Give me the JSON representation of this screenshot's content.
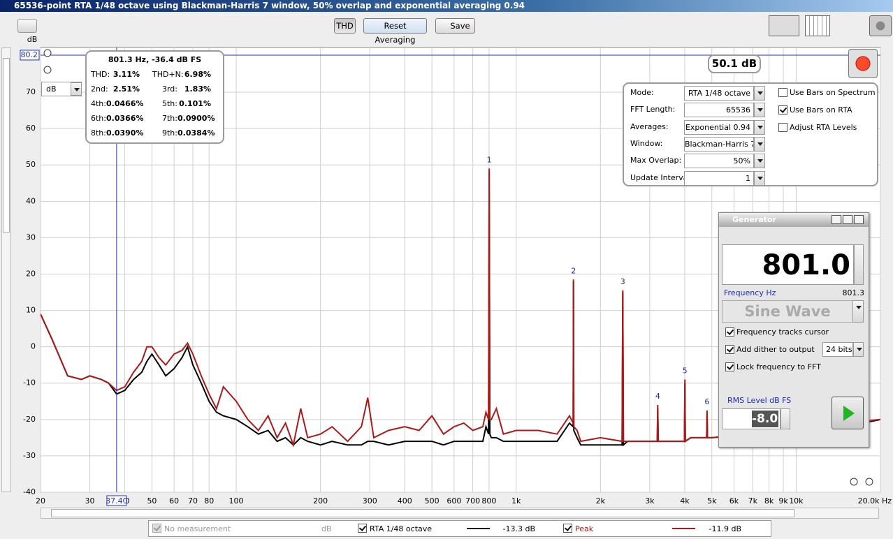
{
  "window": {
    "title": "65536-point RTA 1/48 octave using Blackman-Harris 7 window, 50% overlap and exponential averaging 0.94"
  },
  "toolbar": {
    "buttons": [
      "THD",
      "Reset Averaging",
      "Save"
    ]
  },
  "chart_data": {
    "type": "line",
    "xscale": "log",
    "ylabel": "dB",
    "unit_dropdown": "dB",
    "xlim": [
      20,
      20000
    ],
    "ylim": [
      -40,
      82.3
    ],
    "xticks": [
      20,
      30,
      40,
      50,
      60,
      70,
      80,
      100,
      200,
      300,
      400,
      500,
      600,
      700,
      800,
      {
        "value": 1000,
        "label": "1k"
      },
      {
        "value": 2000,
        "label": "2k"
      },
      {
        "value": 3000,
        "label": "3k"
      },
      {
        "value": 4000,
        "label": "4k"
      },
      {
        "value": 5000,
        "label": "5k"
      },
      {
        "value": 6000,
        "label": "6k"
      },
      {
        "value": 7000,
        "label": "7k"
      },
      {
        "value": 8000,
        "label": "8k"
      },
      {
        "value": 9000,
        "label": "9k"
      },
      {
        "value": 10000,
        "label": "10k"
      },
      {
        "value": 20000,
        "label": "20.0k Hz"
      }
    ],
    "yticks": [
      -40,
      -30,
      -20,
      -10,
      0,
      10,
      20,
      30,
      40,
      50,
      60,
      70
    ],
    "grid": true,
    "x": [
      20,
      22,
      25,
      28,
      30,
      33,
      35,
      37.4,
      40,
      43,
      46,
      48,
      50,
      53,
      56,
      60,
      64,
      67,
      70,
      75,
      80,
      85,
      90,
      100,
      110,
      120,
      130,
      140,
      150,
      160,
      170,
      180,
      200,
      220,
      250,
      280,
      295,
      310,
      350,
      400,
      450,
      500,
      550,
      600,
      650,
      700,
      760,
      780,
      797,
      801,
      805,
      815,
      850,
      900,
      1000,
      1200,
      1400,
      1550,
      1598,
      1602,
      1606,
      1650,
      1700,
      2000,
      2390,
      2403,
      2416,
      2500,
      3000,
      3190,
      3204,
      3218,
      3400,
      3990,
      4005,
      4020,
      4200,
      4790,
      4806,
      4822,
      5000,
      7000,
      10000,
      15000,
      20000
    ],
    "series": [
      {
        "name": "RTA 1/48 octave",
        "color": "#000000",
        "legend_readout": "-13.3 dB",
        "checked": true,
        "values": [
          9,
          2,
          -8,
          -9,
          -8,
          -9,
          -10,
          -13,
          -12,
          -9,
          -7,
          -4,
          -2,
          -5,
          -8,
          -6,
          -3,
          0,
          -5,
          -10,
          -15,
          -18,
          -19,
          -20,
          -22,
          -24,
          -23,
          -26,
          -25,
          -27,
          -25,
          -26,
          -27,
          -26,
          -27,
          -27,
          -26,
          -26,
          -27,
          -26,
          -26,
          -26,
          -27,
          -26,
          -26,
          -26,
          -26,
          -22,
          -24,
          48,
          -24,
          -25,
          -25,
          -26,
          -26,
          -26,
          -26,
          -21,
          -22,
          18,
          -23,
          -25,
          -27,
          -27,
          -27,
          15,
          -27,
          -26,
          -26,
          -26,
          -17,
          -26,
          -26,
          -26,
          -10,
          -26,
          -25,
          -25,
          -18,
          -25,
          -25,
          -24,
          -23,
          -22,
          -20
        ]
      },
      {
        "name": "Peak",
        "color": "#b01818",
        "legend_readout": "-11.9 dB",
        "checked": true,
        "values": [
          9,
          2,
          -8,
          -9,
          -8,
          -9,
          -10,
          -12,
          -11,
          -7,
          -4,
          0,
          0,
          -3,
          -5,
          -2,
          -1,
          1,
          -2,
          -8,
          -13,
          -17,
          -11,
          -15,
          -20,
          -23,
          -19,
          -25,
          -21,
          -27,
          -17,
          -25,
          -24,
          -22,
          -26,
          -22,
          -14,
          -25,
          -23,
          -22,
          -23,
          -19,
          -24,
          -22,
          -21,
          -23,
          -22,
          -18,
          -20,
          49,
          -20,
          -20,
          -17,
          -24,
          -23,
          -23,
          -24,
          -19,
          -21,
          18.5,
          -22,
          -23,
          -26,
          -25,
          -26,
          15.5,
          -26,
          -26,
          -26,
          -26,
          -16,
          -26,
          -26,
          -26,
          -9,
          -26,
          -25,
          -25,
          -17.5,
          -25,
          -25,
          -24,
          -23,
          -21,
          -20
        ]
      }
    ],
    "annotations": [
      {
        "text": "1",
        "x": 801,
        "y": 49
      },
      {
        "text": "2",
        "x": 1602,
        "y": 18.5
      },
      {
        "text": "3",
        "x": 2403,
        "y": 15.5
      },
      {
        "text": "4",
        "x": 3204,
        "y": -16
      },
      {
        "text": "5",
        "x": 4005,
        "y": -9
      },
      {
        "text": "6",
        "x": 4806,
        "y": -17.5
      }
    ],
    "cursor": {
      "x": {
        "value": 37.4,
        "label": "37.40"
      },
      "y": 80.2
    }
  },
  "thd_panel": {
    "heading": "801.3 Hz, -36.4 dB FS",
    "rows": [
      [
        "THD:",
        "3.11%",
        "THD+N:",
        "6.98%"
      ],
      [
        "2nd:",
        "2.51%",
        "3rd:",
        "1.83%"
      ],
      [
        "4th:",
        "0.0466%",
        "5th:",
        "0.101%"
      ],
      [
        "6th:",
        "0.0366%",
        "7th:",
        "0.0900%"
      ],
      [
        "8th:",
        "0.0390%",
        "9th:",
        "0.0384%"
      ]
    ]
  },
  "level_readout": "50.1 dB",
  "settings": {
    "fields": [
      {
        "label": "Mode:",
        "value": "RTA 1/48 octave"
      },
      {
        "label": "FFT Length:",
        "value": "65536"
      },
      {
        "label": "Averages:",
        "value": "Exponential 0.94"
      },
      {
        "label": "Window:",
        "value": "Blackman-Harris 7"
      },
      {
        "label": "Max Overlap:",
        "value": "50%"
      },
      {
        "label": "Update Interval:",
        "value": "1"
      }
    ],
    "options": [
      {
        "label": "Use Bars on Spectrum",
        "checked": false
      },
      {
        "label": "Use Bars on RTA",
        "checked": true
      },
      {
        "label": "Adjust RTA Levels",
        "checked": false
      }
    ]
  },
  "generator": {
    "title": "Generator",
    "frequency": "801.0",
    "frequency_label": "Frequency Hz",
    "cursor_frequency": "801.3",
    "signal": "Sine Wave",
    "options": [
      {
        "label": "Frequency tracks cursor",
        "checked": true
      },
      {
        "label": "Add dither to output",
        "checked": true
      },
      {
        "label": "Lock frequency to FFT",
        "checked": true
      }
    ],
    "dither_bits": "24 bits",
    "level_label": "RMS Level dB FS",
    "level": "-8.0"
  },
  "legend_bar": {
    "label": "No measurement",
    "unit": "dB",
    "checked": true
  }
}
